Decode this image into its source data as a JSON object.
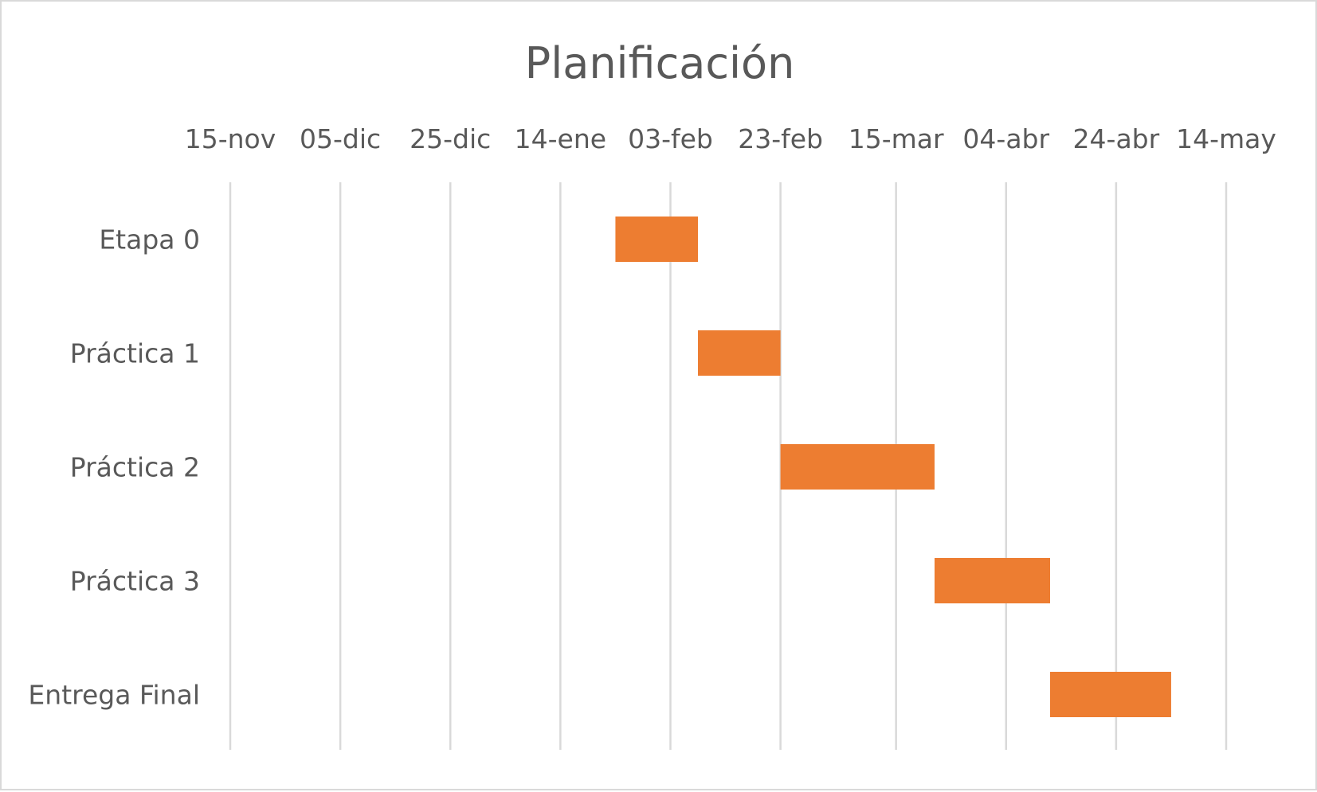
{
  "chart_data": {
    "type": "bar",
    "orientation": "horizontal",
    "subtype": "gantt",
    "title": "Planificación",
    "xlabel": "",
    "ylabel": "",
    "x_axis_position": "top",
    "grid": true,
    "legend": "none",
    "bar_color": "#ED7D31",
    "x_ticks": [
      {
        "date": "2019-11-15",
        "label": "15-nov"
      },
      {
        "date": "2019-12-05",
        "label": "05-dic"
      },
      {
        "date": "2019-12-25",
        "label": "25-dic"
      },
      {
        "date": "2020-01-14",
        "label": "14-ene"
      },
      {
        "date": "2020-02-03",
        "label": "03-feb"
      },
      {
        "date": "2020-02-23",
        "label": "23-feb"
      },
      {
        "date": "2020-03-15",
        "label": "15-mar"
      },
      {
        "date": "2020-04-04",
        "label": "04-abr"
      },
      {
        "date": "2020-04-24",
        "label": "24-abr"
      },
      {
        "date": "2020-05-14",
        "label": "14-may"
      }
    ],
    "xlim": [
      "2019-11-15",
      "2020-05-14"
    ],
    "categories": [
      "Etapa 0",
      "Práctica 1",
      "Práctica 2",
      "Práctica 3",
      "Entrega Final"
    ],
    "tasks": [
      {
        "name": "Etapa 0",
        "start": "2020-01-24",
        "end": "2020-02-08"
      },
      {
        "name": "Práctica 1",
        "start": "2020-02-08",
        "end": "2020-02-23"
      },
      {
        "name": "Práctica 2",
        "start": "2020-02-23",
        "end": "2020-03-22"
      },
      {
        "name": "Práctica 3",
        "start": "2020-03-22",
        "end": "2020-04-12"
      },
      {
        "name": "Entrega Final",
        "start": "2020-04-12",
        "end": "2020-05-04"
      }
    ]
  }
}
